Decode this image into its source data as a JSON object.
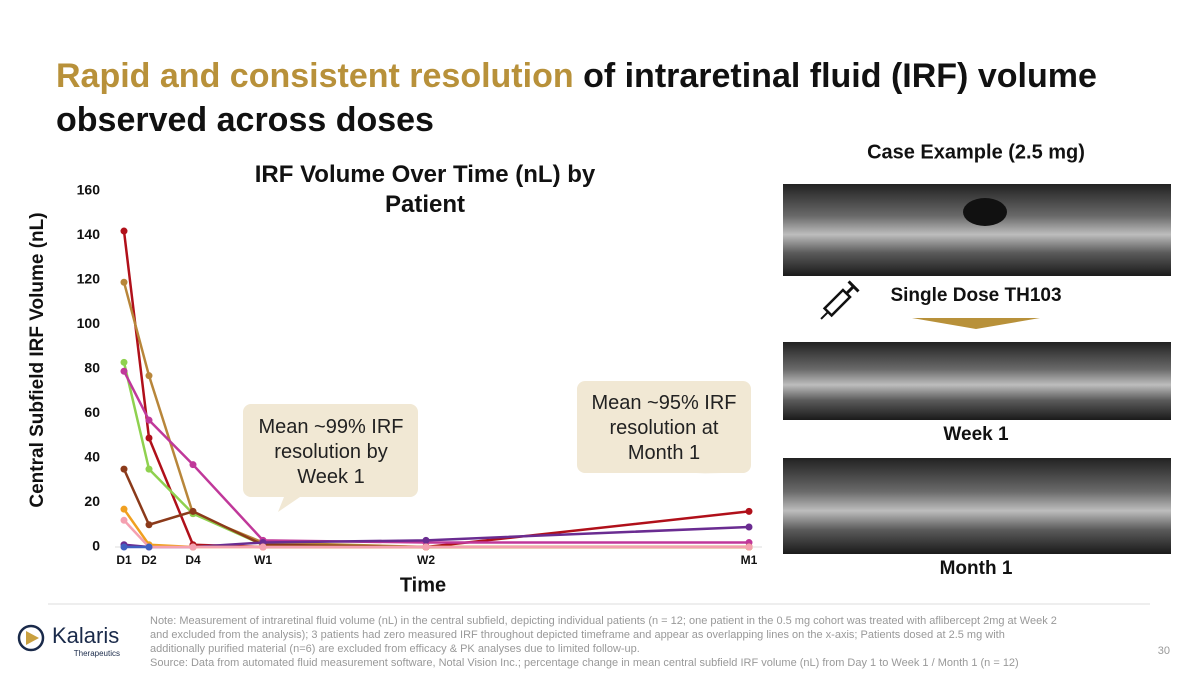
{
  "header": {
    "title_highlight": "Rapid and consistent resolution",
    "title_rest": "of intraretinal fluid (IRF) volume observed across doses"
  },
  "chart_data": {
    "type": "line",
    "title": "IRF Volume Over Time (nL) by Patient",
    "x_label": "Time",
    "y_label": "Central Subfield IRF Volume (nL)",
    "categories": [
      "D1",
      "D2",
      "D4",
      "W1",
      "W2",
      "M1"
    ],
    "ylim": [
      0,
      160
    ],
    "yticks": [
      0,
      20,
      40,
      60,
      80,
      100,
      120,
      140,
      160
    ],
    "grid": false,
    "series": [
      {
        "color": "#b0101a",
        "values": [
          142,
          49,
          1,
          0,
          0,
          16
        ]
      },
      {
        "color": "#b8863a",
        "values": [
          119,
          77,
          15,
          2,
          0,
          0
        ]
      },
      {
        "color": "#8fd14f",
        "values": [
          83,
          35,
          15,
          1,
          0,
          0
        ]
      },
      {
        "color": "#c0389a",
        "values": [
          79,
          57,
          37,
          3,
          2,
          2
        ]
      },
      {
        "color": "#8b3a1a",
        "values": [
          35,
          10,
          16,
          1,
          0,
          0
        ]
      },
      {
        "color": "#6a2c91",
        "values": [
          1,
          0,
          0,
          2,
          3,
          9
        ]
      },
      {
        "color": "#f0a020",
        "values": [
          17,
          1,
          0,
          0,
          0,
          0
        ]
      },
      {
        "color": "#f4a0b0",
        "values": [
          12,
          0,
          0,
          0,
          0,
          0
        ]
      },
      {
        "color": "#4060c0",
        "values": [
          0,
          0,
          null,
          null,
          null,
          null
        ]
      }
    ],
    "annotations": [
      "Mean ~99% IRF resolution by Week 1",
      "Mean ~95% IRF resolution at Month 1"
    ]
  },
  "case_example": {
    "title": "Case Example (2.5 mg)",
    "dose_label": "Single Dose TH103",
    "week_label": "Week 1",
    "month_label": "Month 1"
  },
  "footer": {
    "note": "Note: Measurement of intraretinal fluid volume (nL) in the central subfield, depicting individual patients (n = 12; one patient in the 0.5 mg cohort was treated with aflibercept 2mg at Week 2 and excluded from the analysis); 3 patients had zero measured IRF throughout depicted timeframe and appear as overlapping lines on the x-axis; Patients dosed at 2.5 mg with additionally purified material (n=6) are excluded from efficacy & PK analyses due to limited follow-up.",
    "source": "Source: Data from automated fluid measurement software, Notal Vision Inc.; percentage change in mean central subfield IRF volume (nL) from Day 1 to Week 1 / Month 1 (n = 12)",
    "logo": "Kalaris",
    "logo_sub": "Therapeutics",
    "page": "30"
  }
}
